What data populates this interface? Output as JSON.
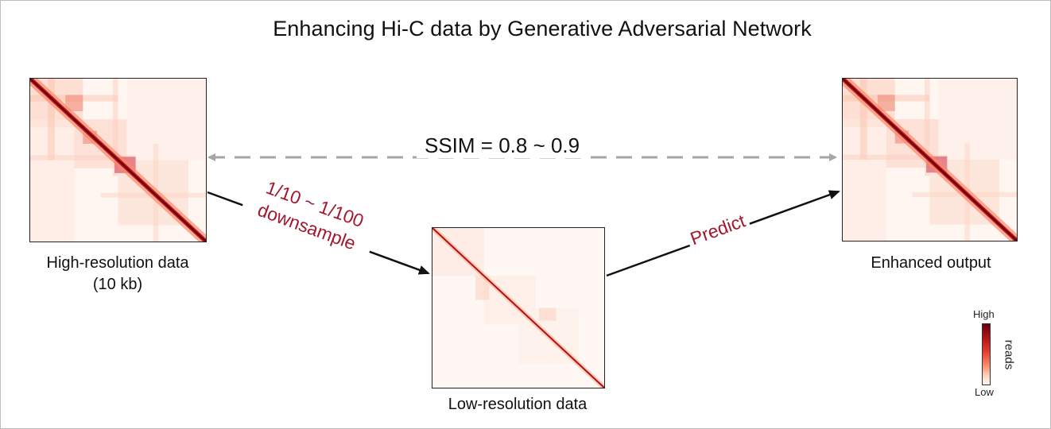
{
  "title": "Enhancing Hi-C data by Generative Adversarial Network",
  "panels": {
    "high_res": {
      "label_line1": "High-resolution data",
      "label_line2": "(10 kb)"
    },
    "low_res": {
      "label": "Low-resolution data"
    },
    "enhanced": {
      "label": "Enhanced output"
    }
  },
  "arrows": {
    "ssim_label": "SSIM = 0.8 ~ 0.9",
    "downsample_line1": "1/10 ~ 1/100",
    "downsample_line2": "downsample",
    "predict_label": "Predict"
  },
  "colorbar": {
    "high_label": "High",
    "low_label": "Low",
    "title": "reads"
  },
  "colors": {
    "accent_red": "#a3182e",
    "dashed_gray": "#a6a6a6",
    "arrow_black": "#111111"
  }
}
